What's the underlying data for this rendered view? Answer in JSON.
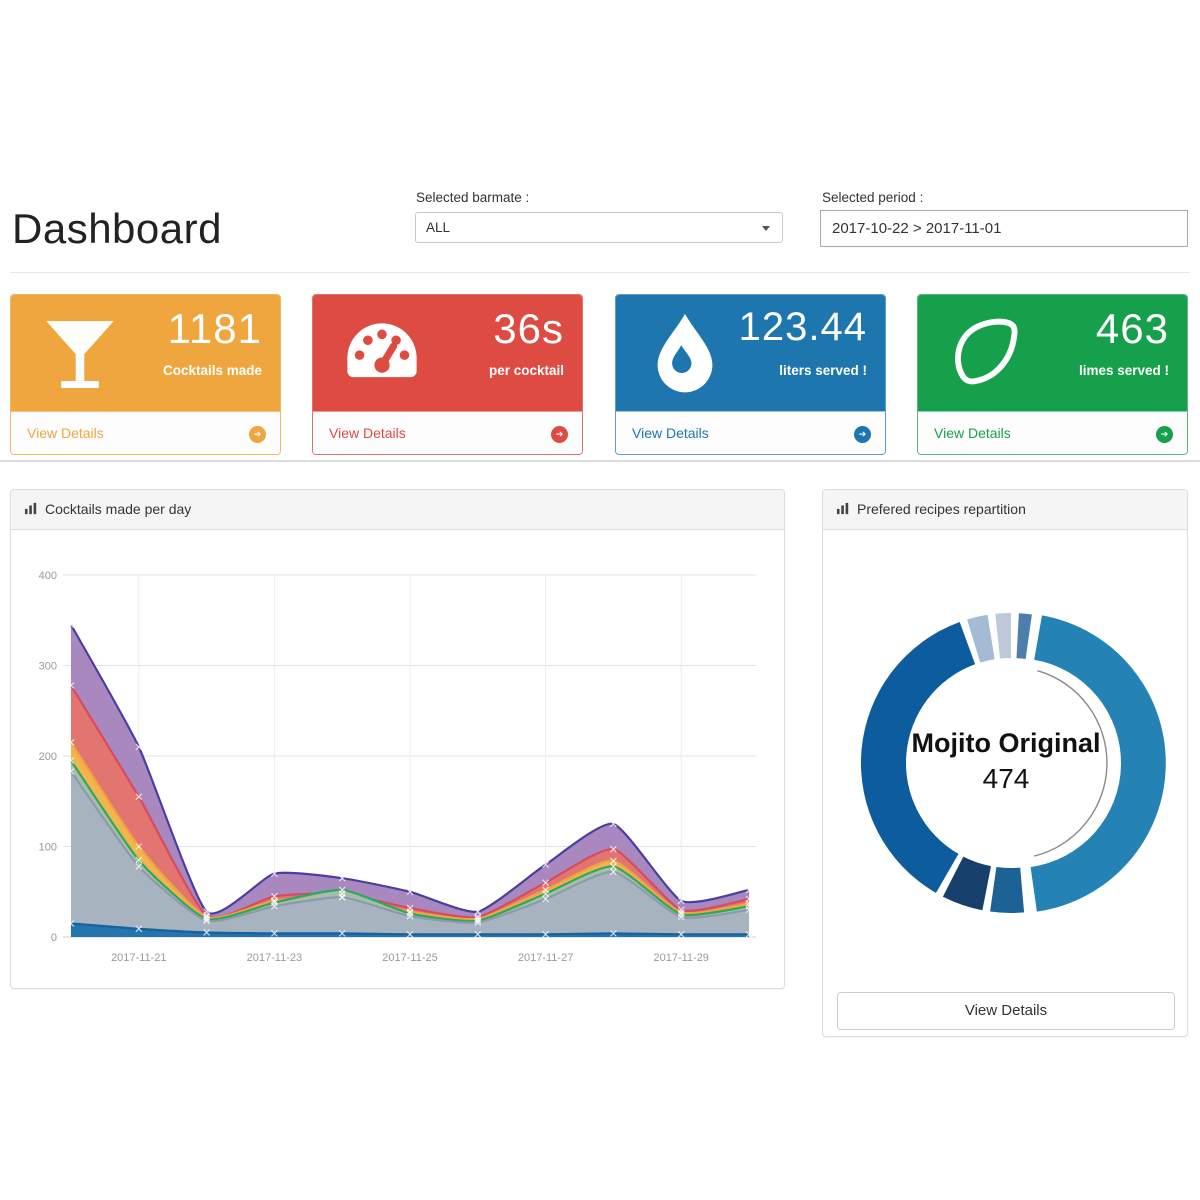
{
  "page": {
    "title": "Dashboard"
  },
  "filters": {
    "barmate_label": "Selected barmate :",
    "barmate_value": "ALL",
    "period_label": "Selected period :",
    "period_value": "2017-10-22 > 2017-11-01"
  },
  "stat_cards": [
    {
      "icon": "martini-glass-icon",
      "value": "1181",
      "label": "Cocktails made",
      "action": "View Details",
      "color": "#f0a63f"
    },
    {
      "icon": "speedometer-icon",
      "value": "36s",
      "label": "per cocktail",
      "action": "View Details",
      "color": "#dd4b43"
    },
    {
      "icon": "water-drop-icon",
      "value": "123.44",
      "label": "liters served !",
      "action": "View Details",
      "color": "#1d76ad"
    },
    {
      "icon": "lime-icon",
      "value": "463",
      "label": "limes served !",
      "action": "View Details",
      "color": "#16a04c"
    }
  ],
  "panels": {
    "left": {
      "title": "Cocktails made per day"
    },
    "right": {
      "title": "Prefered recipes repartition",
      "center_label": "Mojito Original",
      "center_value": "474",
      "button": "View Details"
    }
  },
  "chart_data": [
    {
      "type": "area",
      "title": "Cocktails made per day",
      "x": [
        "2017-11-20",
        "2017-11-21",
        "2017-11-22",
        "2017-11-23",
        "2017-11-24",
        "2017-11-25",
        "2017-11-26",
        "2017-11-27",
        "2017-11-28",
        "2017-11-29",
        "2017-11-30"
      ],
      "xtick_labels": [
        "2017-11-21",
        "2017-11-23",
        "2017-11-25",
        "2017-11-27",
        "2017-11-29"
      ],
      "xtick_indices": [
        1,
        3,
        5,
        7,
        9
      ],
      "ylim": [
        0,
        400
      ],
      "yticks": [
        0,
        100,
        200,
        300,
        400
      ],
      "grid": true,
      "legend": "none",
      "series": [
        {
          "name": "purple",
          "stroke": "#4a3f9f",
          "fill": "#a683bd",
          "values": [
            345,
            210,
            28,
            70,
            65,
            50,
            28,
            80,
            125,
            40,
            52
          ]
        },
        {
          "name": "red",
          "stroke": "#d84a5f",
          "fill": "#e4756b",
          "values": [
            278,
            155,
            24,
            45,
            48,
            32,
            22,
            60,
            97,
            30,
            42
          ]
        },
        {
          "name": "orange",
          "stroke": "#f0a63f",
          "fill": "#f4b54d",
          "values": [
            215,
            100,
            22,
            40,
            44,
            28,
            20,
            52,
            84,
            27,
            37
          ]
        },
        {
          "name": "green",
          "stroke": "#2ca85f",
          "fill": "#a4c0ab",
          "values": [
            195,
            85,
            20,
            38,
            52,
            26,
            18,
            48,
            78,
            25,
            34
          ]
        },
        {
          "name": "gray",
          "stroke": "#8b9bab",
          "fill": "#a7b3c0",
          "values": [
            183,
            78,
            18,
            34,
            44,
            23,
            16,
            42,
            72,
            22,
            30
          ]
        },
        {
          "name": "blue",
          "stroke": "#15629f",
          "fill": "#1d72ae",
          "values": [
            15,
            9,
            5,
            4,
            4,
            3,
            3,
            3,
            4,
            3,
            3
          ]
        }
      ]
    },
    {
      "type": "donut",
      "title": "Prefered recipes repartition",
      "center_label": "Mojito Original",
      "center_value": 474,
      "start_deg": 10,
      "gap_deg": 3,
      "segments": [
        {
          "label": "Mojito Original",
          "value": 474,
          "sweep_deg": 162,
          "color": "#2482b5",
          "selected": true
        },
        {
          "label": "",
          "sweep_deg": 13,
          "color": "#1d6295",
          "selected": false
        },
        {
          "label": "",
          "sweep_deg": 16,
          "color": "#16406b",
          "selected": false
        },
        {
          "label": "",
          "sweep_deg": 130,
          "color": "#0d5c9d",
          "selected": false
        },
        {
          "label": "",
          "sweep_deg": 8,
          "color": "#a3bbd5",
          "selected": false
        },
        {
          "label": "",
          "sweep_deg": 6,
          "color": "#bec9d9",
          "selected": false
        },
        {
          "label": "",
          "sweep_deg": 5,
          "color": "#4c7fae",
          "selected": false
        }
      ]
    }
  ]
}
